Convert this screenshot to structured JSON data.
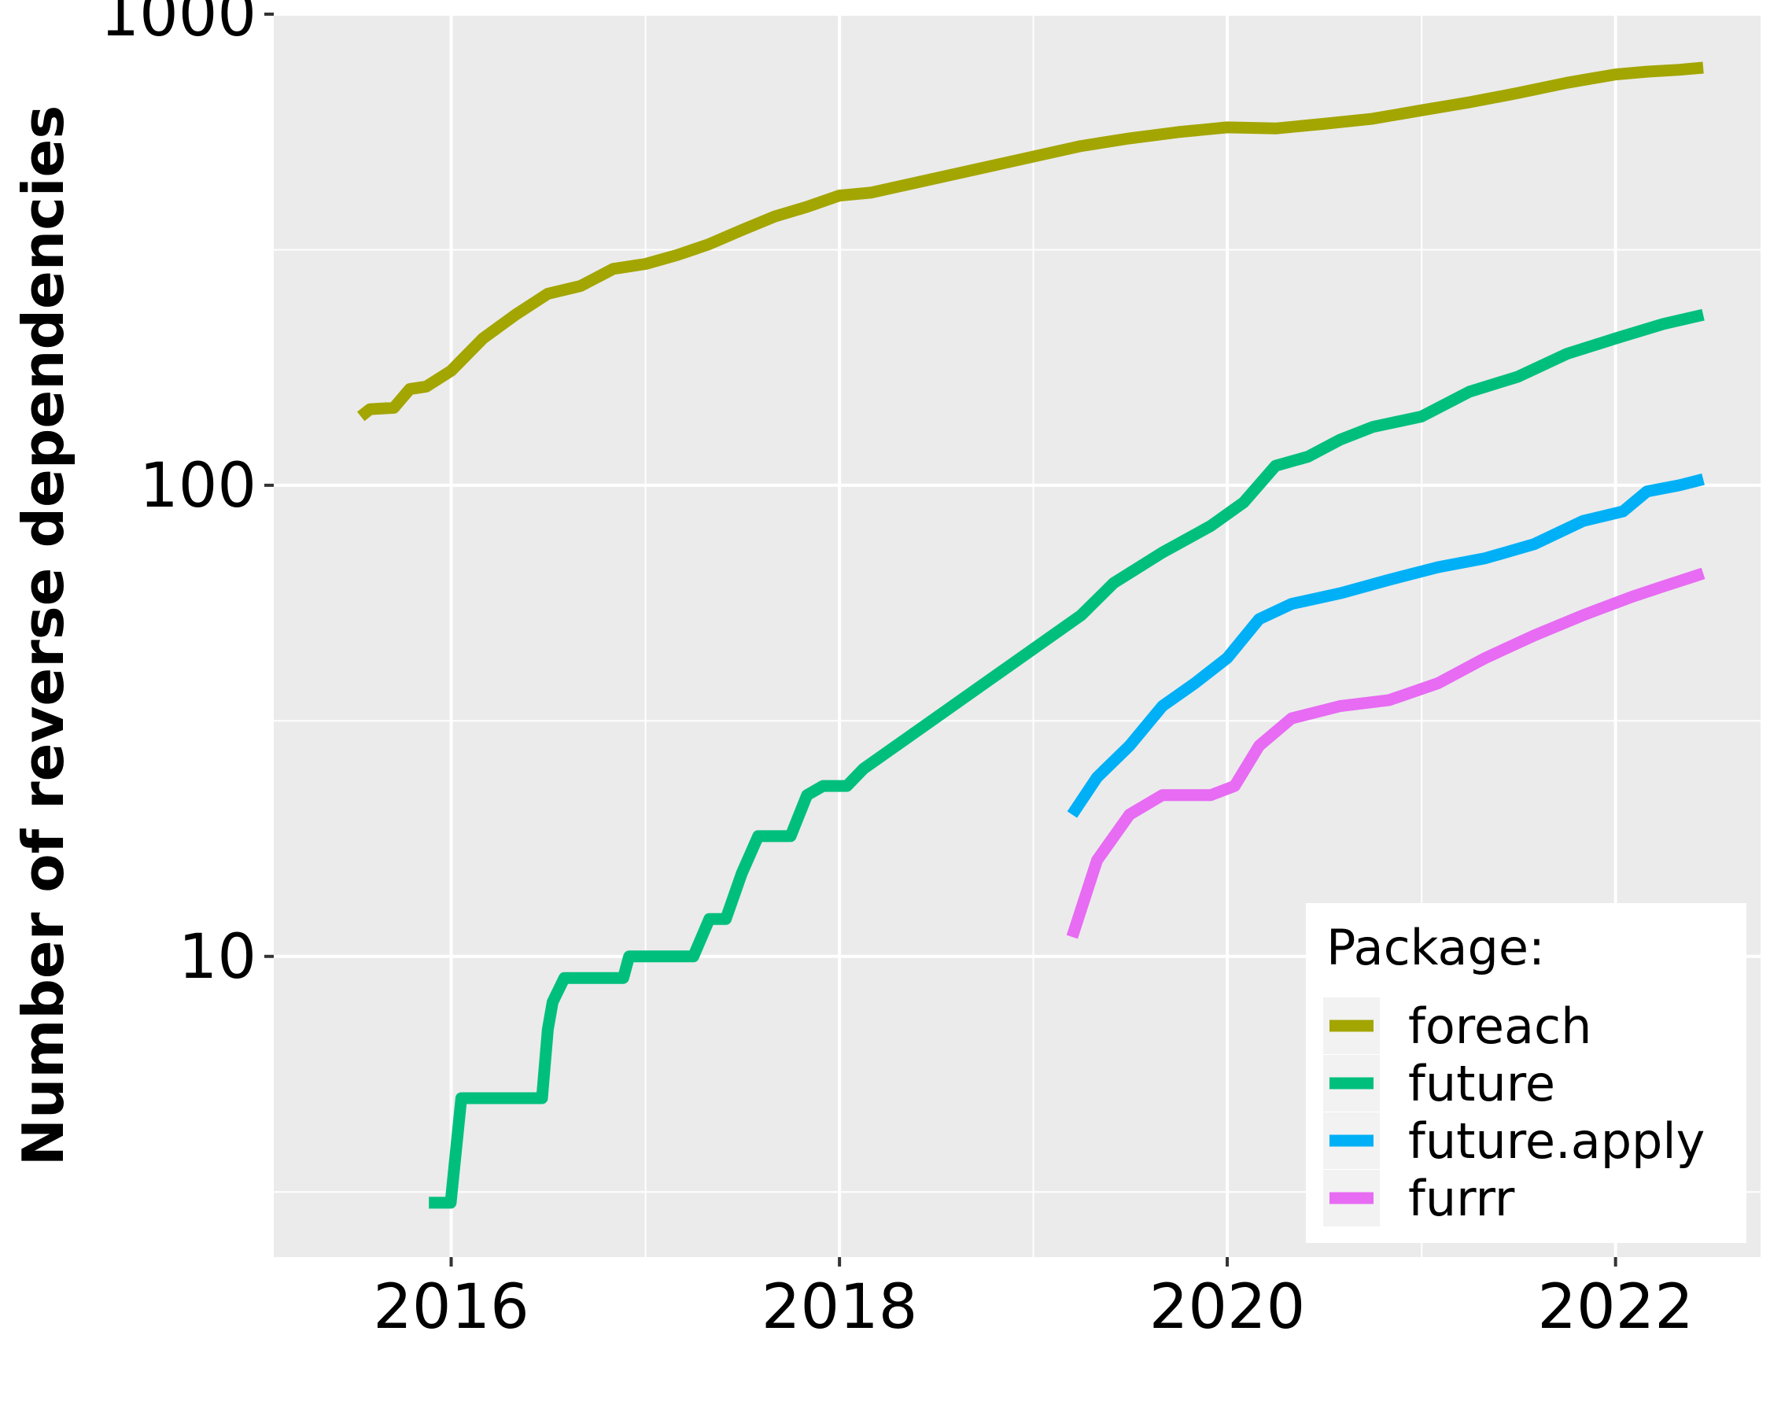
{
  "chart_data": {
    "type": "line",
    "title": "",
    "xlabel": "",
    "ylabel": "Number of reverse dependencies",
    "y_scale": "log10",
    "ylim": [
      2.3,
      1000
    ],
    "xlim": [
      "2015-02-01",
      "2022-10-01"
    ],
    "x_ticks": [
      "2016",
      "2018",
      "2020",
      "2022"
    ],
    "y_ticks": [
      "10",
      "100",
      "1000"
    ],
    "grid": true,
    "legend": {
      "title": "Package:",
      "position": "bottom-right"
    },
    "series": [
      {
        "name": "foreach",
        "color": "#A3A500",
        "points": [
          [
            "2015-07-15",
            140
          ],
          [
            "2015-08-01",
            145
          ],
          [
            "2015-09-15",
            146
          ],
          [
            "2015-10-15",
            160
          ],
          [
            "2015-11-15",
            162
          ],
          [
            "2016-01-01",
            175
          ],
          [
            "2016-03-01",
            205
          ],
          [
            "2016-05-01",
            230
          ],
          [
            "2016-07-01",
            255
          ],
          [
            "2016-09-01",
            265
          ],
          [
            "2016-11-01",
            288
          ],
          [
            "2017-01-01",
            295
          ],
          [
            "2017-03-01",
            308
          ],
          [
            "2017-05-01",
            325
          ],
          [
            "2017-07-01",
            348
          ],
          [
            "2017-09-01",
            372
          ],
          [
            "2017-11-01",
            390
          ],
          [
            "2018-01-01",
            412
          ],
          [
            "2018-03-01",
            418
          ],
          [
            "2019-04-01",
            525
          ],
          [
            "2019-07-01",
            545
          ],
          [
            "2019-10-01",
            562
          ],
          [
            "2020-01-01",
            575
          ],
          [
            "2020-04-01",
            572
          ],
          [
            "2020-07-01",
            585
          ],
          [
            "2020-10-01",
            600
          ],
          [
            "2021-01-01",
            625
          ],
          [
            "2021-04-01",
            650
          ],
          [
            "2021-07-01",
            680
          ],
          [
            "2021-10-01",
            715
          ],
          [
            "2022-01-01",
            745
          ],
          [
            "2022-03-01",
            755
          ],
          [
            "2022-05-01",
            762
          ],
          [
            "2022-06-15",
            770
          ]
        ]
      },
      {
        "name": "future",
        "color": "#00BF7D",
        "points": [
          [
            "2015-11-20",
            3
          ],
          [
            "2015-12-31",
            3
          ],
          [
            "2016-01-20",
            5
          ],
          [
            "2016-06-20",
            5
          ],
          [
            "2016-07-01",
            7
          ],
          [
            "2016-07-10",
            8
          ],
          [
            "2016-08-01",
            9
          ],
          [
            "2016-11-20",
            9
          ],
          [
            "2016-12-01",
            10
          ],
          [
            "2017-04-01",
            10
          ],
          [
            "2017-05-01",
            12
          ],
          [
            "2017-06-01",
            12
          ],
          [
            "2017-07-01",
            15
          ],
          [
            "2017-08-01",
            18
          ],
          [
            "2017-10-01",
            18
          ],
          [
            "2017-11-01",
            22
          ],
          [
            "2017-12-01",
            23
          ],
          [
            "2018-01-15",
            23
          ],
          [
            "2018-02-15",
            25
          ],
          [
            "2019-04-01",
            53
          ],
          [
            "2019-06-01",
            62
          ],
          [
            "2019-09-01",
            72
          ],
          [
            "2019-12-01",
            82
          ],
          [
            "2020-02-01",
            92
          ],
          [
            "2020-04-01",
            110
          ],
          [
            "2020-06-01",
            115
          ],
          [
            "2020-08-01",
            125
          ],
          [
            "2020-10-01",
            133
          ],
          [
            "2021-01-01",
            140
          ],
          [
            "2021-04-01",
            158
          ],
          [
            "2021-07-01",
            170
          ],
          [
            "2021-10-01",
            190
          ],
          [
            "2022-01-01",
            205
          ],
          [
            "2022-04-01",
            220
          ],
          [
            "2022-06-15",
            230
          ]
        ]
      },
      {
        "name": "future.apply",
        "color": "#00B0F6",
        "points": [
          [
            "2019-03-15",
            20
          ],
          [
            "2019-05-01",
            24
          ],
          [
            "2019-07-01",
            28
          ],
          [
            "2019-09-01",
            34
          ],
          [
            "2019-11-01",
            38
          ],
          [
            "2020-01-01",
            43
          ],
          [
            "2020-03-01",
            52
          ],
          [
            "2020-05-01",
            56
          ],
          [
            "2020-08-01",
            59
          ],
          [
            "2020-11-01",
            63
          ],
          [
            "2021-02-01",
            67
          ],
          [
            "2021-05-01",
            70
          ],
          [
            "2021-08-01",
            75
          ],
          [
            "2021-11-01",
            84
          ],
          [
            "2022-01-15",
            88
          ],
          [
            "2022-03-01",
            97
          ],
          [
            "2022-05-01",
            100
          ],
          [
            "2022-06-15",
            103
          ]
        ]
      },
      {
        "name": "furrr",
        "color": "#E76BF3",
        "points": [
          [
            "2019-03-15",
            11
          ],
          [
            "2019-05-01",
            16
          ],
          [
            "2019-07-01",
            20
          ],
          [
            "2019-09-01",
            22
          ],
          [
            "2019-12-01",
            22
          ],
          [
            "2020-01-15",
            23
          ],
          [
            "2020-03-01",
            28
          ],
          [
            "2020-05-01",
            32
          ],
          [
            "2020-08-01",
            34
          ],
          [
            "2020-11-01",
            35
          ],
          [
            "2021-02-01",
            38
          ],
          [
            "2021-05-01",
            43
          ],
          [
            "2021-08-01",
            48
          ],
          [
            "2021-11-01",
            53
          ],
          [
            "2022-02-01",
            58
          ],
          [
            "2022-04-01",
            61
          ],
          [
            "2022-06-15",
            65
          ]
        ]
      }
    ]
  }
}
